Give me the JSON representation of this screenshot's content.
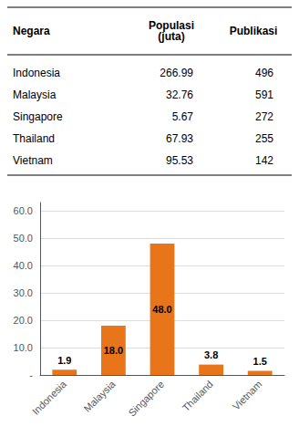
{
  "chart_data": [
    {
      "type": "table",
      "headers": [
        "Negara",
        "Populasi\n(juta)",
        "Publikasi"
      ],
      "rows": [
        [
          "Indonesia",
          "266.99",
          "496"
        ],
        [
          "Malaysia",
          "32.76",
          "591"
        ],
        [
          "Singapore",
          "5.67",
          "272"
        ],
        [
          "Thailand",
          "67.93",
          "255"
        ],
        [
          "Vietnam",
          "95.53",
          "142"
        ]
      ]
    },
    {
      "type": "bar",
      "categories": [
        "Indonesia",
        "Malaysia",
        "Singapore",
        "Thailand",
        "Vietnam"
      ],
      "values": [
        1.9,
        18.0,
        48.0,
        3.8,
        1.5
      ],
      "value_labels": [
        "1.9",
        "18.0",
        "48.0",
        "3.8",
        "1.5"
      ],
      "data_labels": true,
      "color": "#E8751A",
      "ylim": [
        0,
        63
      ],
      "yticks": [
        {
          "value": 0,
          "label": "-"
        },
        {
          "value": 10,
          "label": "10.0"
        },
        {
          "value": 20,
          "label": "20.0"
        },
        {
          "value": 30,
          "label": "30.0"
        },
        {
          "value": 40,
          "label": "40.0"
        },
        {
          "value": 50,
          "label": "50.0"
        },
        {
          "value": 60,
          "label": "60.0"
        }
      ],
      "grid": true
    }
  ]
}
